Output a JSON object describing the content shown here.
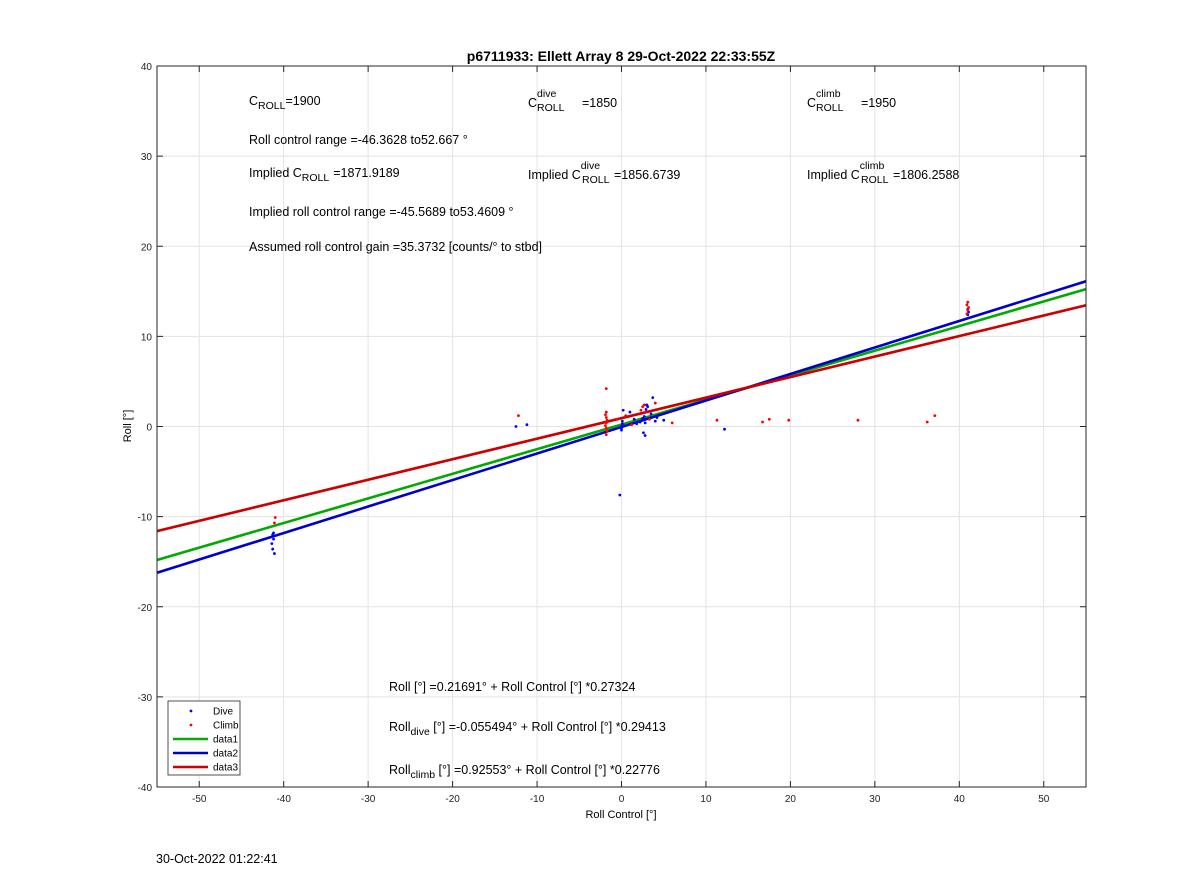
{
  "chart_data": {
    "type": "scatter",
    "title": "p6711933: Ellett Array 8 29-Oct-2022 22:33:55Z",
    "xlabel": "Roll Control [°]",
    "ylabel": "Roll [°]",
    "xlim": [
      -55,
      55
    ],
    "ylim": [
      -40,
      40
    ],
    "xticks": [
      -50,
      -40,
      -30,
      -20,
      -10,
      0,
      10,
      20,
      30,
      40,
      50
    ],
    "yticks": [
      -40,
      -30,
      -20,
      -10,
      0,
      10,
      20,
      30,
      40
    ],
    "grid": true,
    "legend": {
      "position": "bottom-left",
      "entries": [
        "Dive",
        "Climb",
        "data1",
        "data2",
        "data3"
      ]
    },
    "series": [
      {
        "name": "Dive",
        "kind": "points",
        "color": "#0000ff",
        "points": [
          [
            -41.3,
            -12.0
          ],
          [
            -41.2,
            -12.5
          ],
          [
            -41.4,
            -13.0
          ],
          [
            -41.3,
            -13.6
          ],
          [
            -41.1,
            -14.1
          ],
          [
            -41.2,
            -11.8
          ],
          [
            -12.5,
            0.0
          ],
          [
            -11.2,
            0.2
          ],
          [
            -0.2,
            -7.6
          ],
          [
            0.0,
            0.0
          ],
          [
            0.0,
            -0.2
          ],
          [
            0.1,
            0.3
          ],
          [
            0.0,
            -0.4
          ],
          [
            0.1,
            0.6
          ],
          [
            0.2,
            1.8
          ],
          [
            1.0,
            1.6
          ],
          [
            1.5,
            0.8
          ],
          [
            1.8,
            0.3
          ],
          [
            2.2,
            0.5
          ],
          [
            2.5,
            0.9
          ],
          [
            2.7,
            1.1
          ],
          [
            2.8,
            0.4
          ],
          [
            2.9,
            1.9
          ],
          [
            3.0,
            2.4
          ],
          [
            3.1,
            2.2
          ],
          [
            2.6,
            -0.7
          ],
          [
            2.8,
            -1.0
          ],
          [
            3.5,
            1.4
          ],
          [
            3.7,
            3.2
          ],
          [
            4.0,
            0.6
          ],
          [
            4.2,
            1.0
          ],
          [
            5.0,
            0.7
          ],
          [
            12.2,
            -0.3
          ],
          [
            41.0,
            12.4
          ],
          [
            41.1,
            12.7
          ],
          [
            41.0,
            13.0
          ]
        ]
      },
      {
        "name": "Climb",
        "kind": "points",
        "color": "#ff0000",
        "points": [
          [
            -41.0,
            -10.1
          ],
          [
            -41.1,
            -10.7
          ],
          [
            -12.2,
            1.2
          ],
          [
            -1.8,
            4.2
          ],
          [
            -1.8,
            1.6
          ],
          [
            -1.9,
            1.3
          ],
          [
            -1.8,
            1.0
          ],
          [
            -1.7,
            0.7
          ],
          [
            -1.8,
            0.4
          ],
          [
            -1.9,
            0.1
          ],
          [
            -1.8,
            -0.2
          ],
          [
            -1.7,
            -0.5
          ],
          [
            -1.8,
            -0.9
          ],
          [
            -0.5,
            0.8
          ],
          [
            0.5,
            1.2
          ],
          [
            1.2,
            0.2
          ],
          [
            2.3,
            1.8
          ],
          [
            2.5,
            2.2
          ],
          [
            2.7,
            2.4
          ],
          [
            2.9,
            1.6
          ],
          [
            3.3,
            0.8
          ],
          [
            4.0,
            2.6
          ],
          [
            6.0,
            0.4
          ],
          [
            11.3,
            0.7
          ],
          [
            16.7,
            0.5
          ],
          [
            17.5,
            0.8
          ],
          [
            19.8,
            0.7
          ],
          [
            28.0,
            0.7
          ],
          [
            36.2,
            0.5
          ],
          [
            37.1,
            1.2
          ],
          [
            40.9,
            12.5
          ],
          [
            41.0,
            12.9
          ],
          [
            41.1,
            13.2
          ],
          [
            40.9,
            13.5
          ],
          [
            41.0,
            13.8
          ]
        ]
      },
      {
        "name": "data1",
        "kind": "line",
        "color": "#00aa00",
        "intercept": 0.21691,
        "slope": 0.27324
      },
      {
        "name": "data2",
        "kind": "line",
        "color": "#0000cc",
        "intercept": -0.055494,
        "slope": 0.29413
      },
      {
        "name": "data3",
        "kind": "line",
        "color": "#cc0000",
        "intercept": 0.92553,
        "slope": 0.22776
      }
    ],
    "annotations": {
      "c_roll": {
        "main": "C",
        "sub": "ROLL",
        "value": "=1900"
      },
      "c_dive": {
        "main": "C",
        "sup": "dive",
        "sub": "ROLL",
        "value": "=1850"
      },
      "c_climb": {
        "main": "C",
        "sup": "climb",
        "sub": "ROLL",
        "value": "=1950"
      },
      "roll_range": "Roll control range =-46.3628 to52.667 °",
      "implied_c_roll": {
        "prefix": "Implied C",
        "sub": "ROLL",
        "value": "=1871.9189"
      },
      "implied_c_dive": {
        "prefix": "Implied C",
        "sup": "dive",
        "sub": "ROLL",
        "value": "=1856.6739"
      },
      "implied_c_climb": {
        "prefix": "Implied C",
        "sup": "climb",
        "sub": "ROLL",
        "value": "=1806.2588"
      },
      "implied_range": "Implied roll control range =-45.5689 to53.4609 °",
      "gain": "Assumed roll control gain =35.3732 [counts/° to stbd]",
      "fit_all": {
        "main": "Roll",
        "rest": " [°] =0.21691° + Roll Control [°] *0.27324"
      },
      "fit_dive": {
        "main": "Roll",
        "sub": "dive",
        "rest": " [°] =-0.055494° + Roll Control [°] *0.29413"
      },
      "fit_climb": {
        "main": "Roll",
        "sub": "climb",
        "rest": " [°] =0.92553° + Roll Control [°] *0.22776"
      }
    }
  },
  "footer": {
    "timestamp": "30-Oct-2022 01:22:41"
  }
}
